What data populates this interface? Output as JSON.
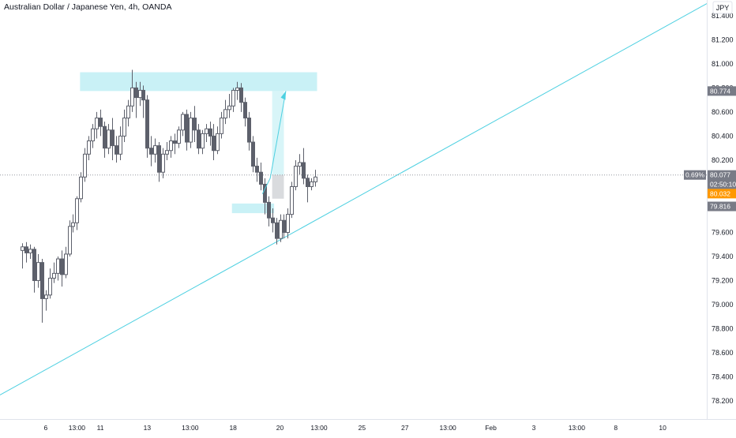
{
  "header": {
    "title": "Australian Dollar / Japanese Yen, 4h, OANDA",
    "currency_badge": "JPY"
  },
  "colors": {
    "up_body": "#ffffff",
    "down_body": "#5d606b",
    "candle_border": "#5d606b",
    "zone_fill": "#b2ebf2",
    "trendline": "#4dd0e1",
    "price_dotted": "#9598a1",
    "axis_text": "#131722",
    "badge_gray": "#787b86",
    "badge_orange": "#ff9800"
  },
  "chart_data": {
    "type": "candlestick",
    "title": "Australian Dollar / Japanese Yen, 4h, OANDA",
    "y_ticks": [
      "78.200",
      "78.400",
      "78.600",
      "78.800",
      "79.000",
      "79.200",
      "79.400",
      "79.600",
      "79.800",
      "80.000",
      "80.200",
      "80.400",
      "80.600",
      "80.800",
      "81.000",
      "81.200",
      "81.400"
    ],
    "ylim": [
      78.05,
      81.53
    ],
    "x_ticks": [
      {
        "label": "6",
        "t": 6
      },
      {
        "label": "13:00",
        "t": 14
      },
      {
        "label": "11",
        "t": 20
      },
      {
        "label": "13",
        "t": 32
      },
      {
        "label": "13:00",
        "t": 43
      },
      {
        "label": "18",
        "t": 54
      },
      {
        "label": "20",
        "t": 66
      },
      {
        "label": "13:00",
        "t": 76
      },
      {
        "label": "25",
        "t": 87
      },
      {
        "label": "27",
        "t": 98
      },
      {
        "label": "13:00",
        "t": 109
      },
      {
        "label": "Feb",
        "t": 120
      },
      {
        "label": "3",
        "t": 131
      },
      {
        "label": "13:00",
        "t": 142
      },
      {
        "label": "8",
        "t": 152
      },
      {
        "label": "10",
        "t": 164
      }
    ],
    "xlim": [
      -5.7,
      175.3
    ],
    "candles": [
      [
        79.45,
        79.51,
        79.48,
        79.3
      ],
      [
        79.48,
        79.52,
        79.43,
        79.35
      ],
      [
        79.43,
        79.5,
        79.46,
        79.38
      ],
      [
        79.46,
        79.48,
        79.2,
        79.1
      ],
      [
        79.2,
        79.42,
        79.35,
        79.14
      ],
      [
        79.35,
        79.38,
        79.05,
        78.85
      ],
      [
        79.05,
        79.12,
        79.08,
        78.95
      ],
      [
        79.08,
        79.3,
        79.22,
        79.05
      ],
      [
        79.22,
        79.35,
        79.26,
        79.18
      ],
      [
        79.26,
        79.4,
        79.38,
        79.2
      ],
      [
        79.38,
        79.45,
        79.25,
        79.15
      ],
      [
        79.25,
        79.48,
        79.42,
        79.22
      ],
      [
        79.42,
        79.7,
        79.65,
        79.4
      ],
      [
        79.65,
        79.75,
        79.68,
        79.6
      ],
      [
        79.68,
        79.9,
        79.88,
        79.62
      ],
      [
        79.88,
        80.1,
        80.06,
        79.85
      ],
      [
        80.06,
        80.3,
        80.25,
        80.02
      ],
      [
        80.25,
        80.4,
        80.36,
        80.2
      ],
      [
        80.36,
        80.5,
        80.46,
        80.3
      ],
      [
        80.46,
        80.6,
        80.55,
        80.38
      ],
      [
        80.55,
        80.62,
        80.48,
        80.4
      ],
      [
        80.48,
        80.52,
        80.3,
        80.22
      ],
      [
        80.3,
        80.5,
        80.45,
        80.25
      ],
      [
        80.45,
        80.55,
        80.32,
        80.2
      ],
      [
        80.32,
        80.4,
        80.25,
        80.18
      ],
      [
        80.25,
        80.48,
        80.4,
        80.2
      ],
      [
        80.4,
        80.62,
        80.55,
        80.35
      ],
      [
        80.55,
        80.7,
        80.65,
        80.48
      ],
      [
        80.65,
        80.95,
        80.8,
        80.6
      ],
      [
        80.8,
        80.85,
        80.72,
        80.55
      ],
      [
        80.72,
        80.85,
        80.78,
        80.65
      ],
      [
        80.78,
        80.82,
        80.7,
        80.55
      ],
      [
        80.7,
        80.74,
        80.3,
        80.22
      ],
      [
        80.3,
        80.4,
        80.25,
        80.15
      ],
      [
        80.25,
        80.38,
        80.32,
        80.18
      ],
      [
        80.32,
        80.35,
        80.1,
        80.02
      ],
      [
        80.1,
        80.3,
        80.25,
        80.05
      ],
      [
        80.25,
        80.35,
        80.28,
        80.2
      ],
      [
        80.28,
        80.4,
        80.36,
        80.22
      ],
      [
        80.36,
        80.42,
        80.34,
        80.25
      ],
      [
        80.34,
        80.48,
        80.45,
        80.3
      ],
      [
        80.45,
        80.6,
        80.58,
        80.4
      ],
      [
        80.58,
        80.62,
        80.35,
        80.28
      ],
      [
        80.35,
        80.6,
        80.55,
        80.3
      ],
      [
        80.55,
        80.65,
        80.45,
        80.35
      ],
      [
        80.45,
        80.5,
        80.3,
        80.25
      ],
      [
        80.3,
        80.45,
        80.42,
        80.25
      ],
      [
        80.42,
        80.5,
        80.46,
        80.35
      ],
      [
        80.46,
        80.52,
        80.4,
        80.32
      ],
      [
        80.4,
        80.5,
        80.28,
        80.2
      ],
      [
        80.28,
        80.48,
        80.42,
        80.25
      ],
      [
        80.42,
        80.6,
        80.55,
        80.38
      ],
      [
        80.55,
        80.7,
        80.62,
        80.5
      ],
      [
        80.62,
        80.75,
        80.65,
        80.55
      ],
      [
        80.65,
        80.8,
        80.78,
        80.6
      ],
      [
        80.78,
        80.85,
        80.8,
        80.7
      ],
      [
        80.8,
        80.84,
        80.68,
        80.6
      ],
      [
        80.68,
        80.72,
        80.55,
        80.48
      ],
      [
        80.55,
        80.6,
        80.35,
        80.28
      ],
      [
        80.35,
        80.4,
        80.15,
        80.1
      ],
      [
        80.15,
        80.22,
        80.1,
        80.02
      ],
      [
        80.1,
        80.18,
        80.0,
        79.95
      ],
      [
        80.0,
        80.05,
        79.85,
        79.75
      ],
      [
        79.85,
        79.9,
        79.72,
        79.65
      ],
      [
        79.72,
        79.8,
        79.68,
        79.6
      ],
      [
        79.68,
        79.72,
        79.55,
        79.5
      ],
      [
        79.55,
        79.75,
        79.7,
        79.52
      ],
      [
        79.7,
        79.75,
        79.6,
        79.55
      ],
      [
        79.6,
        79.8,
        79.75,
        79.55
      ],
      [
        79.75,
        80.02,
        79.98,
        79.72
      ],
      [
        79.98,
        80.2,
        80.15,
        79.95
      ],
      [
        80.15,
        80.25,
        80.18,
        80.08
      ],
      [
        80.18,
        80.3,
        80.05,
        80.0
      ],
      [
        80.05,
        80.08,
        79.98,
        79.85
      ],
      [
        79.98,
        80.05,
        80.02,
        79.95
      ],
      [
        80.02,
        80.12,
        80.06,
        79.98
      ]
    ],
    "current_price": 80.077,
    "levels": {
      "resistance_zone": [
        80.774,
        80.93
      ],
      "support_zone": [
        79.76,
        79.84
      ],
      "target": 80.774
    },
    "trendline": {
      "from": {
        "t": -5.7,
        "price": 78.25
      },
      "to": {
        "t": 175.3,
        "price": 81.5
      }
    },
    "price_labels": [
      {
        "text": "80.774",
        "price": 80.774,
        "style": "dark"
      },
      {
        "text": "80.077",
        "price": 80.077,
        "style": "dark"
      },
      {
        "text": "0.69%",
        "price": 80.077,
        "style": "pct"
      },
      {
        "text": "02:50:10",
        "price": 80.0,
        "style": "dark"
      },
      {
        "text": "80.032",
        "price": 79.922,
        "style": "orange"
      },
      {
        "text": "79.816",
        "price": 79.816,
        "style": "dark"
      }
    ],
    "grid": false,
    "legend": "none"
  }
}
